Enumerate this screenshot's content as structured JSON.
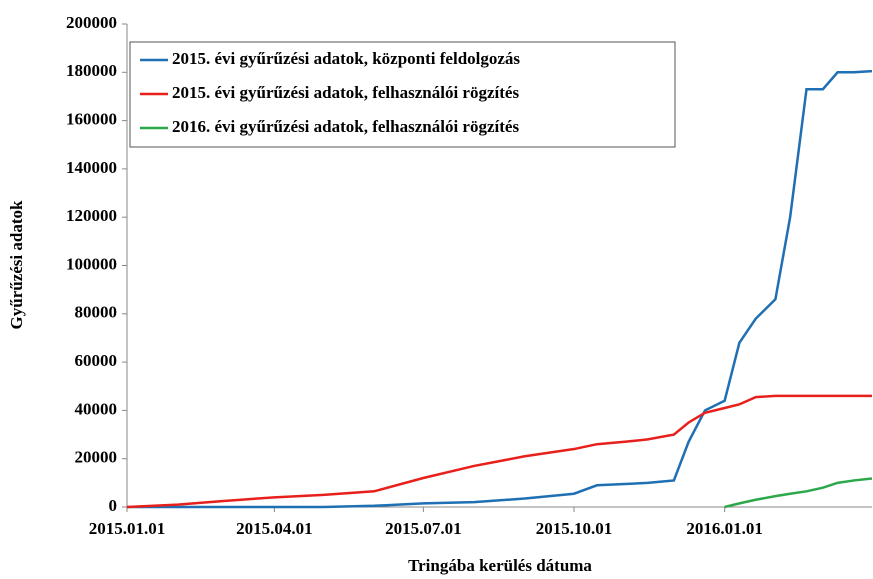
{
  "chart_data": {
    "type": "line",
    "y_label": "Gyűrűzési adatok",
    "x_label": "Tringába kerülés dátuma",
    "x": [
      "2015.01.01",
      "2015.02.01",
      "2015.03.01",
      "2015.04.01",
      "2015.05.01",
      "2015.06.01",
      "2015.07.01",
      "2015.08.01",
      "2015.09.01",
      "2015.10.01",
      "2015.10.15",
      "2015.11.01",
      "2015.11.15",
      "2015.12.01",
      "2015.12.10",
      "2015.12.20",
      "2016.01.01",
      "2016.01.10",
      "2016.01.20",
      "2016.02.01",
      "2016.02.10",
      "2016.02.20",
      "2016.03.01",
      "2016.03.10",
      "2016.03.20",
      "2016.03.31"
    ],
    "series": [
      {
        "name": "2015. évi gyűrűzési adatok, központi feldolgozás",
        "color": "#1f6fb4",
        "values": [
          0,
          0,
          0,
          0,
          0,
          500,
          1500,
          2000,
          3500,
          5500,
          9000,
          9500,
          10000,
          11000,
          27000,
          40000,
          44000,
          68000,
          78000,
          86000,
          120000,
          173000,
          173000,
          180000,
          180000,
          180500
        ]
      },
      {
        "name": "2015. évi gyűrűzési adatok, felhasználói rögzítés",
        "color": "#e8201c",
        "values": [
          0,
          1000,
          2500,
          4000,
          5000,
          6500,
          12000,
          17000,
          21000,
          24000,
          26000,
          27000,
          28000,
          30000,
          35000,
          39000,
          41000,
          42500,
          45500,
          46000,
          46000,
          46000,
          46000,
          46000,
          46000,
          46000
        ]
      },
      {
        "name": "2016. évi gyűrűzési adatok, felhasználói rögzítés",
        "color": "#2ca84a",
        "values": [
          null,
          null,
          null,
          null,
          null,
          null,
          null,
          null,
          null,
          null,
          null,
          null,
          null,
          null,
          null,
          null,
          0,
          1500,
          3000,
          4500,
          5500,
          6500,
          8000,
          10000,
          11000,
          11800
        ]
      }
    ],
    "xlim": [
      "2015.01.01",
      "2016.03.31"
    ],
    "xticks": [
      "2015.01.01",
      "2015.04.01",
      "2015.07.01",
      "2015.10.01",
      "2016.01.01"
    ],
    "ylim": [
      0,
      200000
    ],
    "yticks": [
      0,
      20000,
      40000,
      60000,
      80000,
      100000,
      120000,
      140000,
      160000,
      180000,
      200000
    ],
    "grid": false,
    "legend": "upper left"
  }
}
